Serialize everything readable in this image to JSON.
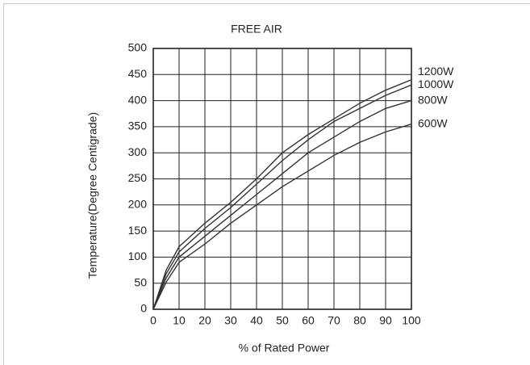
{
  "chart_data": {
    "type": "line",
    "title": "FREE AIR",
    "x_label": "% of Rated Power",
    "y_label": "Temperature(Degree Centigrade)",
    "x": [
      0,
      5,
      10,
      20,
      30,
      40,
      50,
      60,
      70,
      80,
      90,
      100
    ],
    "series": [
      {
        "name": "1200W",
        "color": "#333333",
        "values": [
          0,
          75,
          120,
          165,
          205,
          250,
          300,
          335,
          365,
          395,
          420,
          440
        ]
      },
      {
        "name": "1000W",
        "color": "#333333",
        "values": [
          0,
          68,
          110,
          155,
          195,
          240,
          285,
          325,
          360,
          385,
          410,
          430
        ]
      },
      {
        "name": "800W",
        "color": "#333333",
        "values": [
          0,
          60,
          100,
          140,
          180,
          220,
          260,
          300,
          330,
          360,
          385,
          400
        ]
      },
      {
        "name": "600W",
        "color": "#333333",
        "values": [
          0,
          52,
          90,
          125,
          165,
          200,
          235,
          265,
          295,
          320,
          340,
          355
        ]
      }
    ],
    "xlim": [
      0,
      100
    ],
    "xticks": [
      0,
      10,
      20,
      30,
      40,
      50,
      60,
      70,
      80,
      90,
      100
    ],
    "ylim": [
      0,
      500
    ],
    "yticks": [
      0,
      50,
      100,
      150,
      200,
      250,
      300,
      350,
      400,
      450,
      500
    ],
    "grid": true
  }
}
